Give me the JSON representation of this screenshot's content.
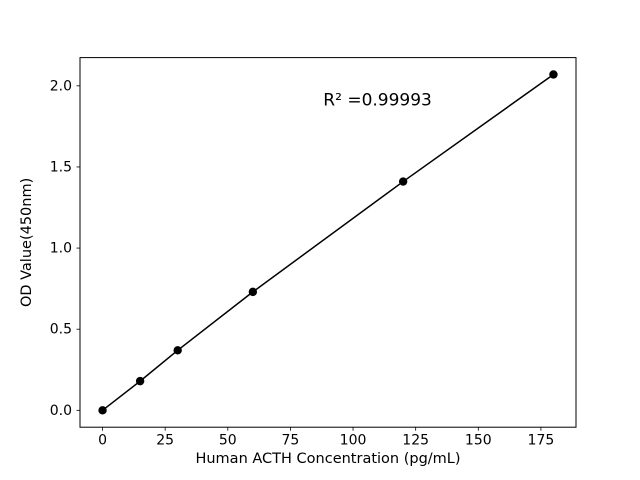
{
  "figure": {
    "background": "#ffffff"
  },
  "chart_data": {
    "type": "line",
    "title": "",
    "xlabel": "Human ACTH Concentration (pg/mL)",
    "ylabel": "OD Value(450nm)",
    "annotation": "R² =0.99993",
    "x": [
      0,
      15,
      30,
      60,
      120,
      180
    ],
    "y": [
      0.0,
      0.18,
      0.37,
      0.73,
      1.41,
      2.07
    ],
    "xlim": [
      -9,
      189
    ],
    "ylim": [
      -0.104,
      2.174
    ],
    "xticks": [
      0,
      25,
      50,
      75,
      100,
      125,
      150,
      175
    ],
    "xticklabels": [
      "0",
      "25",
      "50",
      "75",
      "100",
      "125",
      "150",
      "175"
    ],
    "yticks": [
      0.0,
      0.5,
      1.0,
      1.5,
      2.0
    ],
    "yticklabels": [
      "0.0",
      "0.5",
      "1.0",
      "1.5",
      "2.0"
    ],
    "line_color": "#000000",
    "marker_color": "#000000",
    "grid": false,
    "legend": null
  }
}
